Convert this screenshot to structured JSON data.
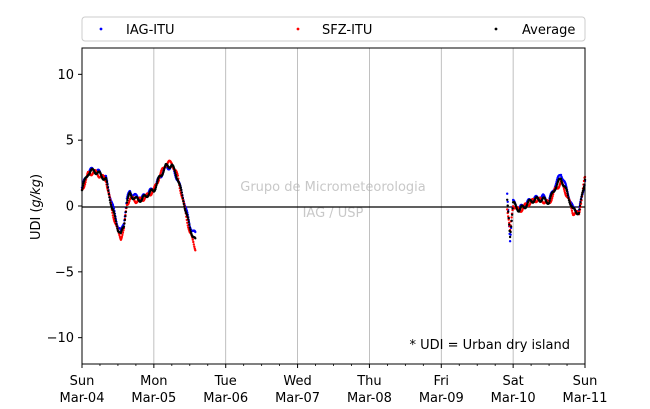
{
  "chart_data": {
    "type": "scatter",
    "ylabel_prefix": "UDI (",
    "ylabel_unit": "g/kg",
    "ylabel_suffix": ")",
    "ylim": [
      -12,
      12
    ],
    "yticks": [
      10,
      5,
      0,
      -5,
      -10
    ],
    "ytick_labels": [
      "10",
      "5",
      "0",
      "−5",
      "−10"
    ],
    "x_start": "2018-03-04",
    "x_end": "2018-03-11",
    "xtick_labels": [
      [
        "Sun",
        "Mar-04"
      ],
      [
        "Mon",
        "Mar-05"
      ],
      [
        "Tue",
        "Mar-06"
      ],
      [
        "Wed",
        "Mar-07"
      ],
      [
        "Thu",
        "Mar-08"
      ],
      [
        "Fri",
        "Mar-09"
      ],
      [
        "Sat",
        "Mar-10"
      ],
      [
        "Sun",
        "Mar-11"
      ]
    ],
    "grid": "vertical",
    "legend_position": "top",
    "annotation": "* UDI = Urban dry island",
    "watermark": [
      "Grupo de Micrometeorologia",
      "IAG / USP"
    ],
    "series": [
      {
        "name": "IAG-ITU",
        "color": "#0000ff",
        "x": [
          "2018-03-04T00:00",
          "2018-03-04T02:00",
          "2018-03-04T04:00",
          "2018-03-04T06:00",
          "2018-03-04T08:00",
          "2018-03-04T10:00",
          "2018-03-04T12:00",
          "2018-03-04T13:00",
          "2018-03-04T14:00",
          "2018-03-04T15:00",
          "2018-03-04T16:00",
          "2018-03-04T18:00",
          "2018-03-04T20:00",
          "2018-03-04T22:00",
          "2018-03-05T00:00",
          "2018-03-05T02:00",
          "2018-03-05T04:00",
          "2018-03-05T06:00",
          "2018-03-05T08:00",
          "2018-03-05T10:00",
          "2018-03-05T12:00",
          "2018-03-05T14:00",
          "2018-03-09T22:00",
          "2018-03-09T23:00",
          "2018-03-10T00:00",
          "2018-03-10T02:00",
          "2018-03-10T04:00",
          "2018-03-10T06:00",
          "2018-03-10T08:00",
          "2018-03-10T10:00",
          "2018-03-10T12:00",
          "2018-03-10T14:00",
          "2018-03-10T16:00",
          "2018-03-10T18:00",
          "2018-03-10T20:00",
          "2018-03-10T22:00",
          "2018-03-11T00:00"
        ],
        "y": [
          1.4,
          2.6,
          2.8,
          2.5,
          2.1,
          0.2,
          -1.5,
          -2.0,
          -1.2,
          0.5,
          1.1,
          0.7,
          0.6,
          1.0,
          1.3,
          2.2,
          2.9,
          3.0,
          2.0,
          0.5,
          -1.5,
          -2.2,
          0.8,
          -2.5,
          0.3,
          -0.2,
          0.1,
          0.5,
          0.6,
          0.7,
          0.4,
          1.6,
          2.5,
          1.2,
          -0.2,
          -0.4,
          1.9
        ]
      },
      {
        "name": "SFZ-ITU",
        "color": "#ff0000",
        "x": [
          "2018-03-04T00:00",
          "2018-03-04T02:00",
          "2018-03-04T04:00",
          "2018-03-04T06:00",
          "2018-03-04T08:00",
          "2018-03-04T10:00",
          "2018-03-04T12:00",
          "2018-03-04T13:00",
          "2018-03-04T14:00",
          "2018-03-04T15:00",
          "2018-03-04T16:00",
          "2018-03-04T18:00",
          "2018-03-04T20:00",
          "2018-03-04T22:00",
          "2018-03-05T00:00",
          "2018-03-05T02:00",
          "2018-03-05T04:00",
          "2018-03-05T06:00",
          "2018-03-05T08:00",
          "2018-03-05T10:00",
          "2018-03-05T12:00",
          "2018-03-05T14:00",
          "2018-03-09T22:00",
          "2018-03-09T23:00",
          "2018-03-10T00:00",
          "2018-03-10T02:00",
          "2018-03-10T04:00",
          "2018-03-10T06:00",
          "2018-03-10T08:00",
          "2018-03-10T10:00",
          "2018-03-10T12:00",
          "2018-03-10T14:00",
          "2018-03-10T16:00",
          "2018-03-10T18:00",
          "2018-03-10T20:00",
          "2018-03-10T22:00",
          "2018-03-11T00:00"
        ],
        "y": [
          1.2,
          2.4,
          2.6,
          2.3,
          2.0,
          -0.3,
          -2.0,
          -2.4,
          -1.8,
          0.1,
          0.6,
          0.4,
          0.5,
          0.8,
          1.2,
          2.3,
          3.2,
          3.3,
          2.2,
          0.1,
          -2.0,
          -3.3,
          -0.1,
          -2.0,
          0.1,
          -0.4,
          0.0,
          0.3,
          0.5,
          0.4,
          0.2,
          1.2,
          1.8,
          0.8,
          -0.5,
          -0.6,
          2.2
        ]
      },
      {
        "name": "Average",
        "color": "#000000",
        "x": [
          "2018-03-04T00:00",
          "2018-03-04T02:00",
          "2018-03-04T04:00",
          "2018-03-04T06:00",
          "2018-03-04T08:00",
          "2018-03-04T10:00",
          "2018-03-04T12:00",
          "2018-03-04T13:00",
          "2018-03-04T14:00",
          "2018-03-04T15:00",
          "2018-03-04T16:00",
          "2018-03-04T18:00",
          "2018-03-04T20:00",
          "2018-03-04T22:00",
          "2018-03-05T00:00",
          "2018-03-05T02:00",
          "2018-03-05T04:00",
          "2018-03-05T06:00",
          "2018-03-05T08:00",
          "2018-03-05T10:00",
          "2018-03-05T12:00",
          "2018-03-05T14:00",
          "2018-03-09T22:00",
          "2018-03-09T23:00",
          "2018-03-10T00:00",
          "2018-03-10T02:00",
          "2018-03-10T04:00",
          "2018-03-10T06:00",
          "2018-03-10T08:00",
          "2018-03-10T10:00",
          "2018-03-10T12:00",
          "2018-03-10T14:00",
          "2018-03-10T16:00",
          "2018-03-10T18:00",
          "2018-03-10T20:00",
          "2018-03-10T22:00",
          "2018-03-11T00:00"
        ],
        "y": [
          1.3,
          2.5,
          2.7,
          2.4,
          2.0,
          -0.1,
          -1.7,
          -2.2,
          -1.5,
          0.3,
          0.9,
          0.5,
          0.5,
          0.9,
          1.2,
          2.2,
          3.0,
          3.1,
          2.1,
          0.3,
          -1.7,
          -2.7,
          0.3,
          -2.2,
          0.2,
          -0.3,
          0.0,
          0.4,
          0.5,
          0.5,
          0.3,
          1.4,
          2.1,
          1.0,
          -0.3,
          -0.5,
          2.0
        ]
      }
    ]
  }
}
